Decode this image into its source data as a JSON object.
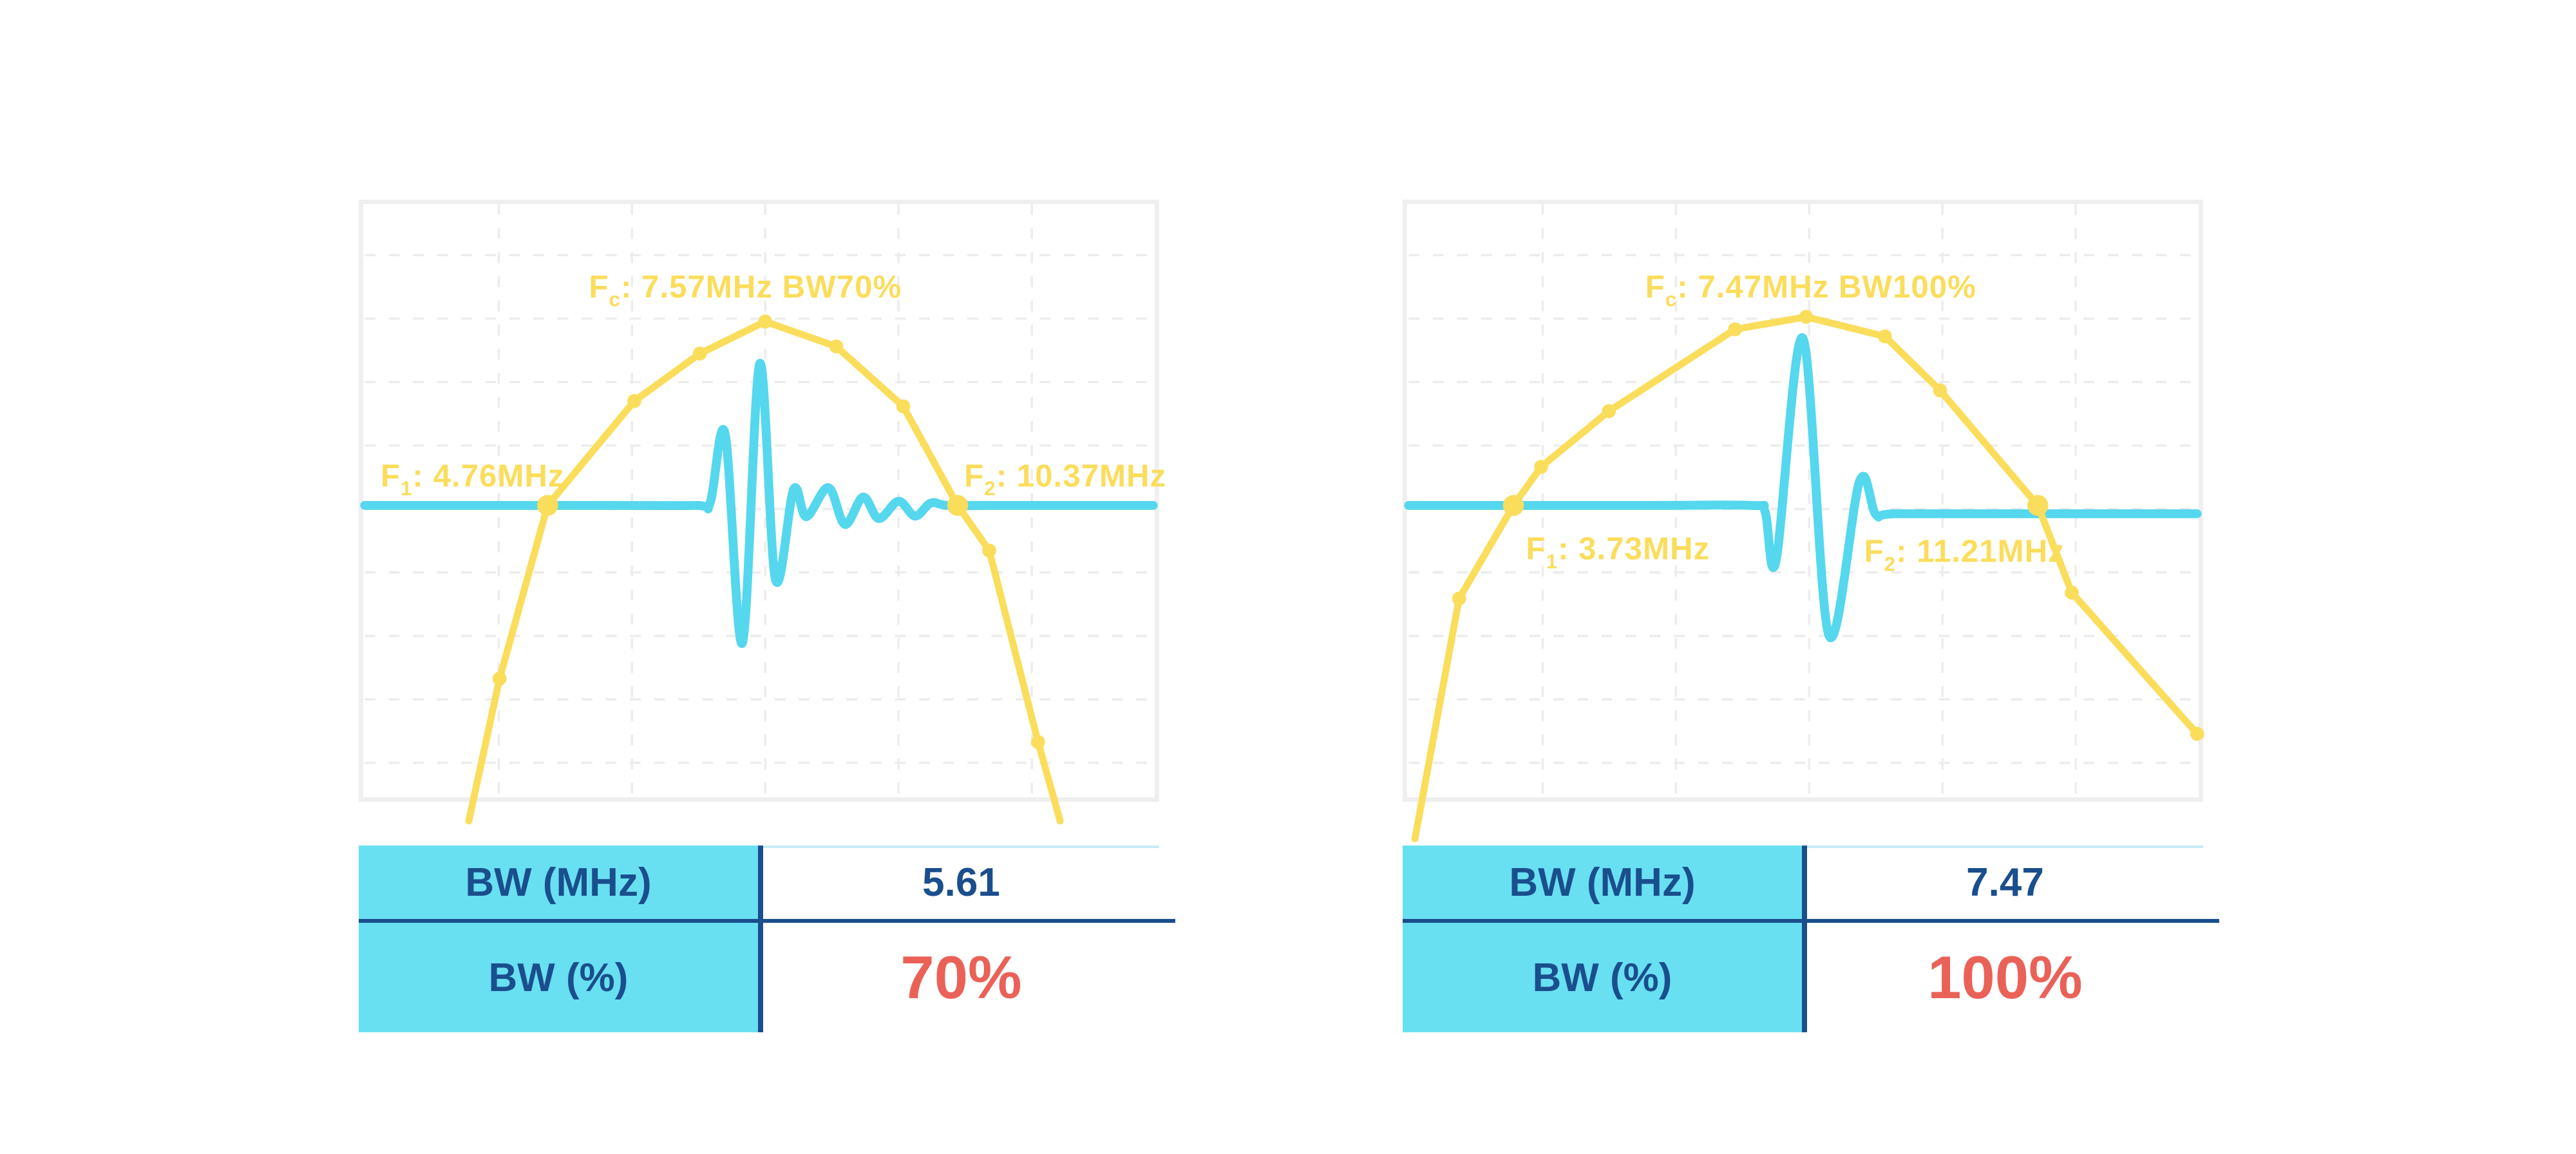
{
  "colors": {
    "yellow": "#FBDD5C",
    "cyan": "#55D7EE",
    "table_cyan": "#68E0F2",
    "navy": "#1A4E8C",
    "red": "#EA6158",
    "chart_border": "#EFEFEF",
    "grid": "#ECECEC",
    "table_topline": "#C8ECF6",
    "background": "#FFFFFF"
  },
  "panels": [
    {
      "name": "narrowband-70pct",
      "fc_label": {
        "base": "F",
        "sub": "c",
        "rest": ": 7.57MHz BW70%"
      },
      "f1_label": {
        "base": "F",
        "sub": "1",
        "rest": ": 4.76MHz"
      },
      "f2_label": {
        "base": "F",
        "sub": "2",
        "rest": ": 10.37MHz"
      },
      "table": {
        "rows": [
          {
            "label": "BW (MHz)",
            "value": "5.61",
            "accent": false
          },
          {
            "label": "BW (%)",
            "value": "70%",
            "accent": true
          }
        ]
      }
    },
    {
      "name": "broadband-100pct",
      "fc_label": {
        "base": "F",
        "sub": "c",
        "rest": ": 7.47MHz BW100%"
      },
      "f1_label": {
        "base": "F",
        "sub": "1",
        "rest": ": 3.73MHz"
      },
      "f2_label": {
        "base": "F",
        "sub": "2",
        "rest": ": 11.21MHz"
      },
      "table": {
        "rows": [
          {
            "label": "BW (MHz)",
            "value": "7.47",
            "accent": false
          },
          {
            "label": "BW (%)",
            "value": "100%",
            "accent": true
          }
        ]
      }
    }
  ],
  "chart_data": [
    {
      "type": "line",
      "title": "Fc: 7.57MHz BW70%",
      "x_axis": {
        "unit": "MHz",
        "approx_range": [
          2.1,
          13.1
        ],
        "ticks_visible": false
      },
      "y_axis": {
        "ticks_visible": false
      },
      "fc_mhz": 7.57,
      "f1_mhz": 4.76,
      "f2_mhz": 10.37,
      "bw_mhz": 5.61,
      "bw_percent": 70,
      "legend": "none",
      "grid_on": true,
      "grid": {
        "x_pct": [
          17,
          33.9,
          50.8,
          67.7,
          84.6
        ],
        "y_pct": [
          8.6,
          19.3,
          30,
          40.7,
          51.4,
          62.1,
          72.8,
          83.5,
          94.2
        ]
      },
      "series": [
        {
          "name": "transducer-spectrum",
          "color_key": "yellow",
          "style": "polyline-markers",
          "points_pct": [
            [
              13.2,
              104,
              0
            ],
            [
              17.1,
              80,
              1
            ],
            [
              23.2,
              50.8,
              2
            ],
            [
              34.2,
              33.2,
              1
            ],
            [
              42.5,
              25.2,
              1
            ],
            [
              50.8,
              19.8,
              1
            ],
            [
              59.8,
              24,
              1
            ],
            [
              68.3,
              34.1,
              1
            ],
            [
              75.2,
              50.8,
              2
            ],
            [
              79.2,
              58.4,
              1
            ],
            [
              85.4,
              90.7,
              1
            ],
            [
              88.2,
              104,
              0
            ]
          ]
        },
        {
          "name": "pulse-echo-waveform",
          "color_key": "cyan",
          "style": "smooth",
          "points_pct": [
            [
              0,
              50.8
            ],
            [
              30,
              50.8
            ],
            [
              42,
              50.8
            ],
            [
              43.8,
              50.4
            ],
            [
              45.7,
              38.7
            ],
            [
              47.9,
              74
            ],
            [
              50.1,
              26.9
            ],
            [
              52.1,
              63.3
            ],
            [
              54.4,
              48.1
            ],
            [
              56,
              52.7
            ],
            [
              58.8,
              47.8
            ],
            [
              60.9,
              54
            ],
            [
              63.2,
              49.4
            ],
            [
              65.2,
              53
            ],
            [
              67.7,
              50.1
            ],
            [
              69.8,
              52.6
            ],
            [
              71.8,
              50.4
            ],
            [
              74,
              50.8
            ],
            [
              80,
              50.8
            ],
            [
              100,
              50.8
            ]
          ]
        }
      ]
    },
    {
      "type": "line",
      "title": "Fc: 7.47MHz BW100%",
      "x_axis": {
        "unit": "MHz",
        "approx_range": [
          2.2,
          13.3
        ],
        "ticks_visible": false
      },
      "y_axis": {
        "ticks_visible": false
      },
      "fc_mhz": 7.47,
      "f1_mhz": 3.73,
      "f2_mhz": 11.21,
      "bw_mhz": 7.47,
      "bw_percent": 100,
      "legend": "none",
      "grid_on": true,
      "grid": {
        "x_pct": [
          17,
          33.9,
          50.8,
          67.7,
          84.6
        ],
        "y_pct": [
          8.6,
          19.3,
          30,
          40.7,
          51.4,
          62.1,
          72.8,
          83.5,
          94.2
        ]
      },
      "series": [
        {
          "name": "transducer-spectrum",
          "color_key": "yellow",
          "style": "polyline-markers",
          "points_pct": [
            [
              0.8,
              107,
              0
            ],
            [
              6.4,
              66.5,
              1
            ],
            [
              13.3,
              50.8,
              2
            ],
            [
              16.8,
              44.3,
              1
            ],
            [
              25.4,
              34.9,
              1
            ],
            [
              41.4,
              21.1,
              1
            ],
            [
              50.4,
              19,
              1
            ],
            [
              60.4,
              22.3,
              1
            ],
            [
              67.4,
              31.4,
              1
            ],
            [
              79.8,
              50.8,
              2
            ],
            [
              84.1,
              65.5,
              1
            ],
            [
              100,
              89.3,
              1
            ]
          ]
        },
        {
          "name": "pulse-echo-waveform",
          "color_key": "cyan",
          "style": "smooth",
          "points_pct": [
            [
              0,
              50.8
            ],
            [
              30,
              50.8
            ],
            [
              43.5,
              50.8
            ],
            [
              45.2,
              51.8
            ],
            [
              46.6,
              60.1
            ],
            [
              50,
              22.6
            ],
            [
              53.3,
              72.7
            ],
            [
              57.2,
              46.7
            ],
            [
              59.3,
              52.4
            ],
            [
              62,
              52.2
            ],
            [
              80,
              52.2
            ],
            [
              100,
              52.2
            ]
          ]
        }
      ]
    }
  ]
}
